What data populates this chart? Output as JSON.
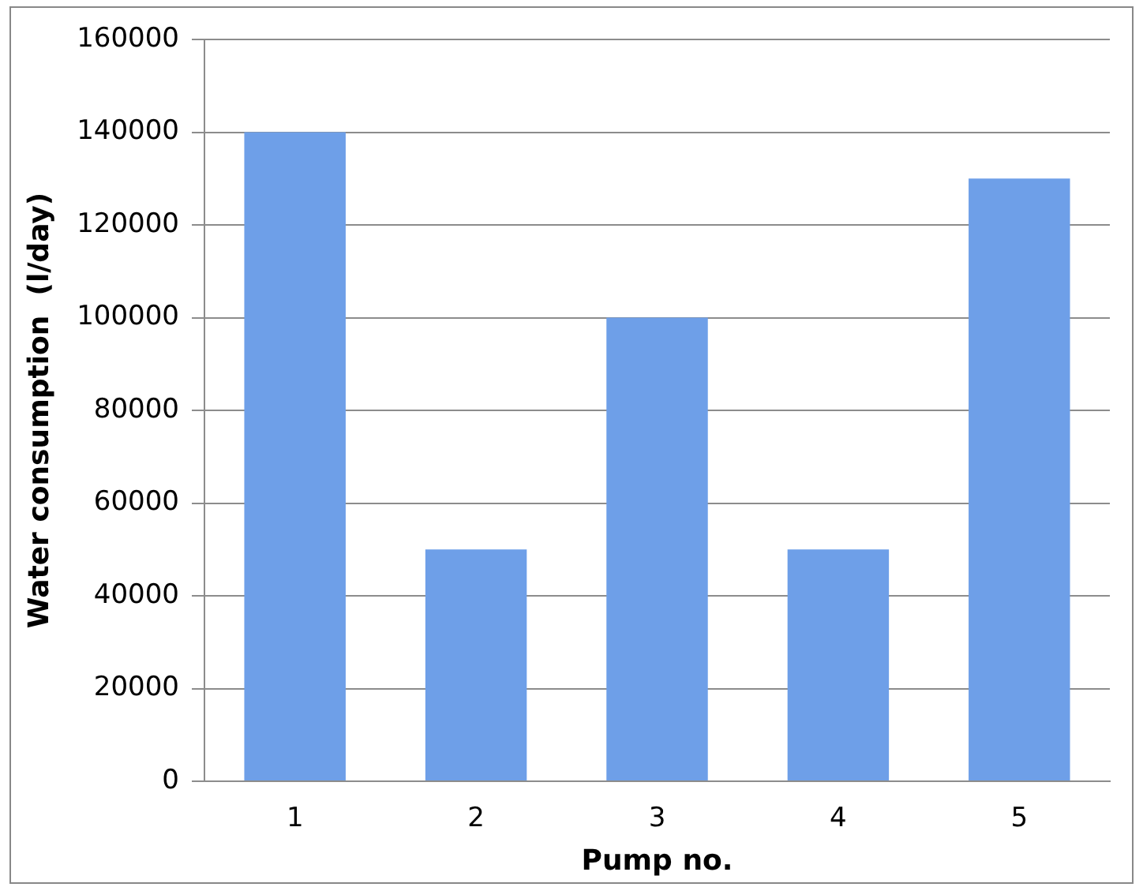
{
  "chart_data": {
    "type": "bar",
    "xlabel": "Pump no.",
    "ylabel": "Water consumption  (l/day)",
    "categories": [
      "1",
      "2",
      "3",
      "4",
      "5"
    ],
    "values": [
      140000,
      50000,
      100000,
      50000,
      130000
    ],
    "color": "#6e9fe8",
    "ylim": [
      0,
      160000
    ],
    "yticks": [
      0,
      20000,
      40000,
      60000,
      80000,
      100000,
      120000,
      140000,
      160000
    ],
    "grid": "y",
    "legend": false
  }
}
